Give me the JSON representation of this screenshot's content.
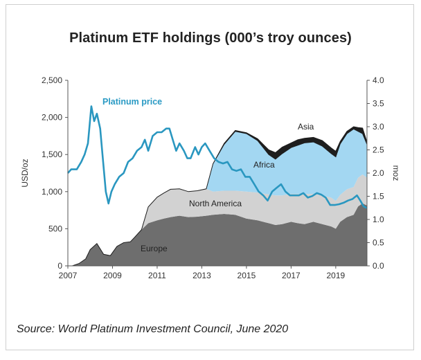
{
  "title": "Platinum ETF holdings (000’s troy ounces)",
  "source": "Source: World Platinum Investment Council, June 2020",
  "colors": {
    "europe": "#6e6e6e",
    "north_america": "#d2d2d2",
    "africa": "#a3d7f2",
    "asia": "#1e1e1e",
    "price": "#2a97c0"
  },
  "chart_data": {
    "type": "area",
    "title": "Platinum ETF holdings (000’s troy ounces)",
    "xlabel": "",
    "ylabel_left": "USD/oz",
    "ylabel_right": "moz",
    "xlim": [
      2007,
      2020.4
    ],
    "ylim_left": [
      0,
      2500
    ],
    "ylim_right": [
      0,
      4.0
    ],
    "x_ticks": [
      "2007",
      "2009",
      "2011",
      "2013",
      "2015",
      "2017",
      "2019"
    ],
    "x_tick_values": [
      2007,
      2009,
      2011,
      2013,
      2015,
      2017,
      2019
    ],
    "y_left_ticks": [
      "0",
      "500",
      "1,000",
      "1,500",
      "2,000",
      "2,500"
    ],
    "y_left_tick_values": [
      0,
      500,
      1000,
      1500,
      2000,
      2500
    ],
    "y_right_ticks": [
      "0.0",
      "0.5",
      "1.0",
      "1.5",
      "2.0",
      "2.5",
      "3.0",
      "3.5",
      "4.0"
    ],
    "y_right_tick_values": [
      0,
      0.5,
      1.0,
      1.5,
      2.0,
      2.5,
      3.0,
      3.5,
      4.0
    ],
    "grid": false,
    "legend": "inline",
    "stacked_series": [
      {
        "name": "Europe",
        "axis": "right",
        "x": [
          2007.2,
          2007.5,
          2007.8,
          2008.0,
          2008.3,
          2008.6,
          2008.9,
          2009.2,
          2009.5,
          2009.8,
          2010.0,
          2010.3,
          2010.6,
          2011.0,
          2011.3,
          2011.6,
          2012.0,
          2012.4,
          2012.8,
          2013.2,
          2013.5,
          2014.0,
          2014.5,
          2015.0,
          2015.5,
          2016.0,
          2016.3,
          2016.6,
          2017.0,
          2017.3,
          2017.6,
          2018.0,
          2018.4,
          2018.8,
          2019.0,
          2019.2,
          2019.5,
          2019.8,
          2020.0,
          2020.2,
          2020.4
        ],
        "values": [
          0.0,
          0.05,
          0.15,
          0.35,
          0.48,
          0.25,
          0.22,
          0.42,
          0.5,
          0.52,
          0.62,
          0.78,
          0.92,
          0.98,
          1.02,
          1.05,
          1.08,
          1.05,
          1.06,
          1.08,
          1.1,
          1.12,
          1.1,
          1.02,
          0.98,
          0.92,
          0.88,
          0.9,
          0.95,
          0.92,
          0.9,
          0.95,
          0.9,
          0.85,
          0.8,
          0.95,
          1.05,
          1.1,
          1.28,
          1.35,
          1.3
        ]
      },
      {
        "name": "North America",
        "axis": "right",
        "x": [
          2007.2,
          2007.5,
          2007.8,
          2008.0,
          2008.3,
          2008.6,
          2008.9,
          2009.2,
          2009.5,
          2009.8,
          2010.0,
          2010.3,
          2010.6,
          2011.0,
          2011.3,
          2011.6,
          2012.0,
          2012.4,
          2012.8,
          2013.2,
          2013.5,
          2014.0,
          2014.5,
          2015.0,
          2015.5,
          2016.0,
          2016.3,
          2016.6,
          2017.0,
          2017.3,
          2017.6,
          2018.0,
          2018.4,
          2018.8,
          2019.0,
          2019.2,
          2019.5,
          2019.8,
          2020.0,
          2020.2,
          2020.4
        ],
        "values": [
          0.0,
          0.0,
          0.0,
          0.0,
          0.0,
          0.0,
          0.0,
          0.0,
          0.0,
          0.0,
          0.0,
          0.0,
          0.35,
          0.5,
          0.55,
          0.6,
          0.58,
          0.55,
          0.56,
          0.58,
          0.5,
          0.5,
          0.52,
          0.58,
          0.6,
          0.62,
          0.64,
          0.62,
          0.6,
          0.63,
          0.65,
          0.6,
          0.62,
          0.62,
          0.6,
          0.58,
          0.6,
          0.6,
          0.62,
          0.62,
          0.6
        ]
      },
      {
        "name": "Africa",
        "axis": "right",
        "x": [
          2007.2,
          2007.5,
          2007.8,
          2008.0,
          2008.3,
          2008.6,
          2008.9,
          2009.2,
          2009.5,
          2009.8,
          2010.0,
          2010.3,
          2010.6,
          2011.0,
          2011.3,
          2011.6,
          2012.0,
          2012.4,
          2012.8,
          2013.2,
          2013.5,
          2014.0,
          2014.5,
          2015.0,
          2015.5,
          2016.0,
          2016.3,
          2016.6,
          2017.0,
          2017.3,
          2017.6,
          2018.0,
          2018.4,
          2018.8,
          2019.0,
          2019.2,
          2019.5,
          2019.8,
          2020.0,
          2020.2,
          2020.4
        ],
        "values": [
          0.0,
          0.0,
          0.0,
          0.0,
          0.0,
          0.0,
          0.0,
          0.0,
          0.0,
          0.0,
          0.0,
          0.0,
          0.0,
          0.0,
          0.0,
          0.0,
          0.0,
          0.0,
          0.0,
          0.0,
          0.6,
          1.0,
          1.28,
          1.25,
          1.12,
          0.86,
          0.78,
          0.9,
          1.0,
          1.05,
          1.1,
          1.12,
          1.06,
          0.95,
          0.95,
          1.1,
          1.2,
          1.25,
          1.0,
          0.88,
          0.72
        ]
      },
      {
        "name": "Asia",
        "axis": "right",
        "x": [
          2007.2,
          2007.5,
          2007.8,
          2008.0,
          2008.3,
          2008.6,
          2008.9,
          2009.2,
          2009.5,
          2009.8,
          2010.0,
          2010.3,
          2010.6,
          2011.0,
          2011.3,
          2011.6,
          2012.0,
          2012.4,
          2012.8,
          2013.2,
          2013.5,
          2014.0,
          2014.5,
          2015.0,
          2015.5,
          2016.0,
          2016.3,
          2016.6,
          2017.0,
          2017.3,
          2017.6,
          2018.0,
          2018.4,
          2018.8,
          2019.0,
          2019.2,
          2019.5,
          2019.8,
          2020.0,
          2020.2,
          2020.4
        ],
        "values": [
          0.0,
          0.0,
          0.0,
          0.0,
          0.0,
          0.0,
          0.0,
          0.0,
          0.0,
          0.0,
          0.0,
          0.0,
          0.0,
          0.0,
          0.0,
          0.0,
          0.0,
          0.0,
          0.0,
          0.0,
          0.0,
          0.02,
          0.02,
          0.02,
          0.04,
          0.1,
          0.14,
          0.14,
          0.1,
          0.12,
          0.1,
          0.1,
          0.12,
          0.12,
          0.12,
          0.05,
          0.05,
          0.05,
          0.08,
          0.12,
          0.05
        ]
      }
    ],
    "line_series": {
      "name": "Platinum price",
      "axis": "left",
      "x": [
        2007.0,
        2007.15,
        2007.4,
        2007.6,
        2007.75,
        2007.9,
        2008.05,
        2008.18,
        2008.3,
        2008.45,
        2008.55,
        2008.7,
        2008.82,
        2008.95,
        2009.1,
        2009.3,
        2009.5,
        2009.7,
        2009.9,
        2010.1,
        2010.3,
        2010.45,
        2010.6,
        2010.8,
        2011.0,
        2011.2,
        2011.4,
        2011.55,
        2011.7,
        2011.85,
        2012.0,
        2012.2,
        2012.35,
        2012.5,
        2012.7,
        2012.85,
        2013.0,
        2013.15,
        2013.35,
        2013.55,
        2013.75,
        2013.95,
        2014.15,
        2014.35,
        2014.55,
        2014.75,
        2014.95,
        2015.15,
        2015.35,
        2015.55,
        2015.75,
        2015.95,
        2016.15,
        2016.35,
        2016.55,
        2016.75,
        2016.95,
        2017.15,
        2017.35,
        2017.55,
        2017.75,
        2017.95,
        2018.15,
        2018.35,
        2018.55,
        2018.75,
        2018.95,
        2019.15,
        2019.35,
        2019.55,
        2019.75,
        2019.95,
        2020.1,
        2020.25,
        2020.4
      ],
      "values": [
        1250,
        1300,
        1300,
        1400,
        1500,
        1650,
        2150,
        1950,
        2050,
        1850,
        1500,
        1000,
        840,
        1000,
        1100,
        1200,
        1250,
        1400,
        1450,
        1550,
        1600,
        1700,
        1550,
        1750,
        1800,
        1800,
        1850,
        1850,
        1700,
        1550,
        1650,
        1550,
        1450,
        1450,
        1600,
        1500,
        1600,
        1650,
        1550,
        1450,
        1400,
        1380,
        1400,
        1300,
        1280,
        1300,
        1200,
        1200,
        1100,
        1000,
        950,
        880,
        1000,
        1050,
        1100,
        1000,
        950,
        950,
        950,
        980,
        920,
        940,
        980,
        960,
        920,
        820,
        820,
        830,
        850,
        880,
        900,
        950,
        880,
        800,
        780
      ]
    },
    "annotations": [
      {
        "text": "Platinum price",
        "series": "Platinum price"
      },
      {
        "text": "Asia",
        "series": "Asia"
      },
      {
        "text": "Africa",
        "series": "Africa"
      },
      {
        "text": "North America",
        "series": "North America"
      },
      {
        "text": "Europe",
        "series": "Europe"
      }
    ]
  }
}
